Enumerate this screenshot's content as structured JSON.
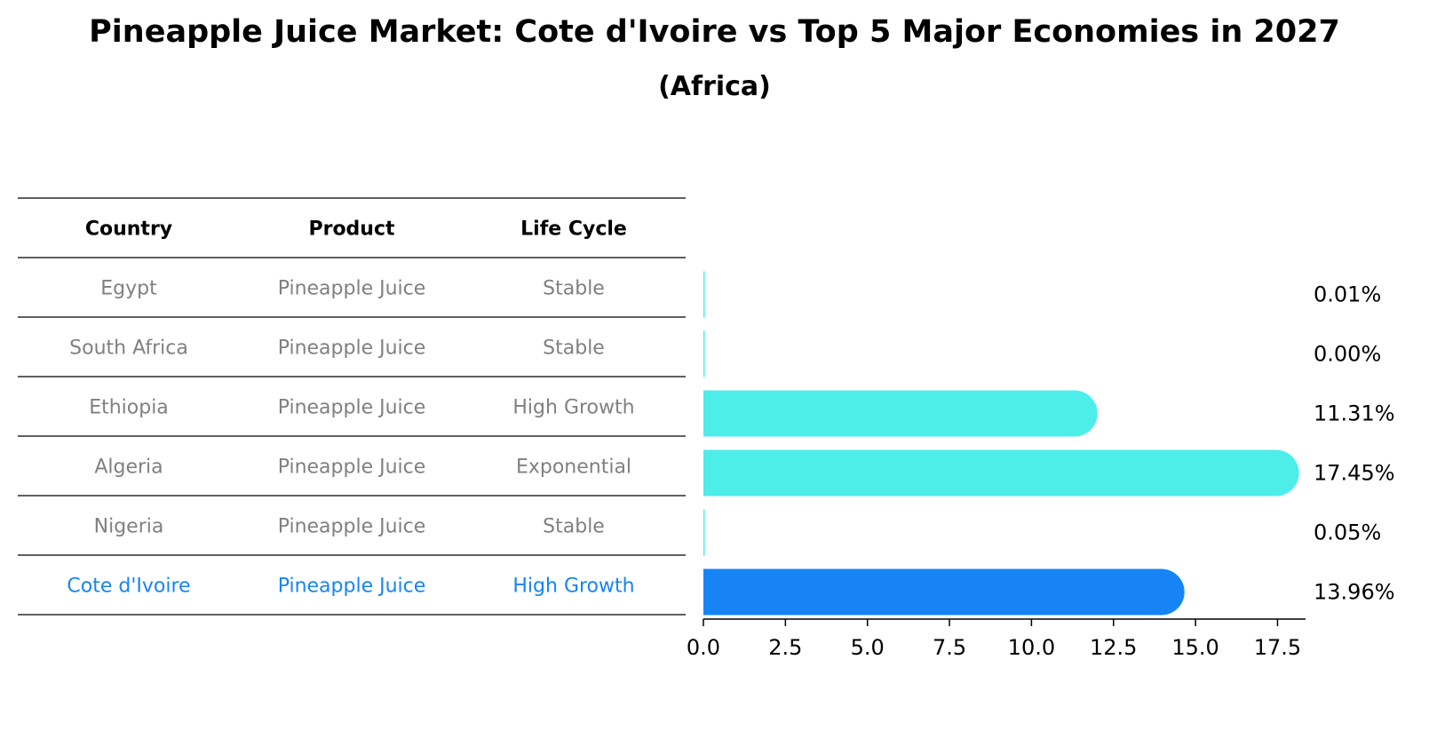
{
  "title": "Pineapple Juice Market: Cote d'Ivoire vs Top 5 Major Economies in 2027",
  "subtitle": "(Africa)",
  "colors": {
    "bar": "#4dedea",
    "highlight": "#1784f5",
    "muted_text": "#808080",
    "highlight_text": "#1784f5",
    "rule": "#000000"
  },
  "table": {
    "headers": [
      "Country",
      "Product",
      "Life Cycle"
    ]
  },
  "chart_data": {
    "type": "bar",
    "orientation": "horizontal",
    "categories": [
      "Egypt",
      "South Africa",
      "Ethiopia",
      "Algeria",
      "Nigeria",
      "Cote d'Ivoire"
    ],
    "products": [
      "Pineapple Juice",
      "Pineapple Juice",
      "Pineapple Juice",
      "Pineapple Juice",
      "Pineapple Juice",
      "Pineapple Juice"
    ],
    "life_cycle": [
      "Stable",
      "Stable",
      "High Growth",
      "Exponential",
      "Stable",
      "High Growth"
    ],
    "values": [
      0.01,
      0.0,
      11.31,
      17.45,
      0.05,
      13.96
    ],
    "value_labels": [
      "0.01%",
      "0.00%",
      "11.31%",
      "17.45%",
      "0.05%",
      "13.96%"
    ],
    "highlight_index": 5,
    "xlim": [
      0,
      18.3
    ],
    "xticks": [
      0.0,
      2.5,
      5.0,
      7.5,
      10.0,
      12.5,
      15.0,
      17.5
    ],
    "xtick_labels": [
      "0.0",
      "2.5",
      "5.0",
      "7.5",
      "10.0",
      "12.5",
      "15.0",
      "17.5"
    ],
    "xlabel": "",
    "ylabel": ""
  }
}
